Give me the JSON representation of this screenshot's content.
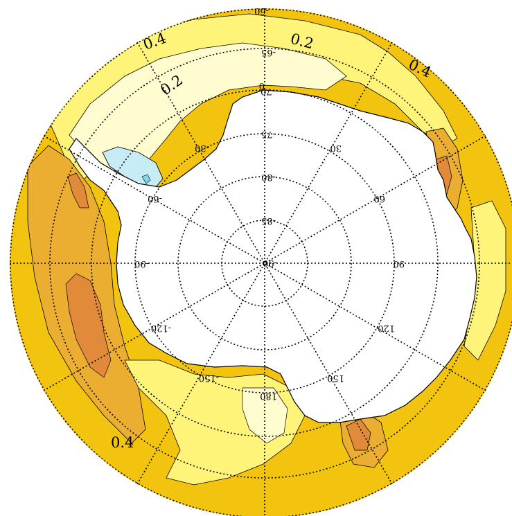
{
  "map": {
    "projection": "south polar stereographic",
    "colors": {
      "land": "#ffffff",
      "ocean_base": "#f2c410",
      "level_0_15": "#c8ecf5",
      "level_0_2": "#fffcd0",
      "level_0_3": "#fff47a",
      "level_0_4": "#f5cd1c",
      "level_0_5": "#ecae30",
      "level_0_6": "#e08a3a",
      "grid": "#000000"
    },
    "latitude_labels": [
      "-60",
      "-65",
      "-70",
      "-75",
      "-80",
      "-85",
      "-90"
    ],
    "longitude_labels": [
      "0",
      "30",
      "60",
      "90",
      "120",
      "150",
      "180",
      "-150",
      "-120",
      "-90",
      "-60",
      "-30"
    ],
    "contour_labels": [
      "0.4",
      "0.2",
      "0.4",
      "0.2",
      "0.4"
    ]
  }
}
